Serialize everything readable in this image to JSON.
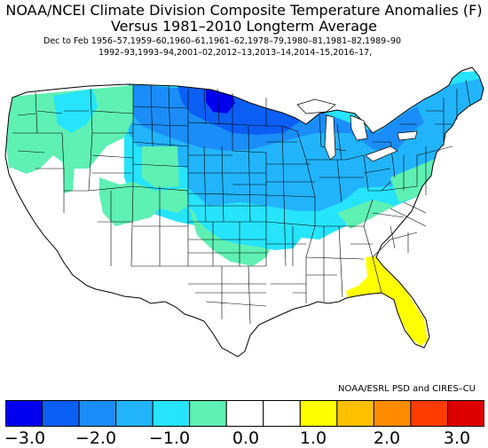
{
  "title": {
    "line1": "NOAA/NCEI Climate Division Composite Temperature Anomalies (F)",
    "line2": "Versus 1981–2010 Longterm Average"
  },
  "subtitle": {
    "line1": "Dec to Feb  1956–57,1959–60,1960–61,1961–62,1978–79,1980–81,1981–82,1989–90",
    "line2": "1992–93,1993–94,2001–02,2012–13,2013–14,2014–15,2016–17,"
  },
  "credit": "NOAA/ESRL PSD and CIRES–CU",
  "legend": {
    "colors": [
      "#0000ee",
      "#0c5ff4",
      "#1b8df8",
      "#22b4fb",
      "#26e4fb",
      "#5ff0b4",
      "#ffffff",
      "#ffffff",
      "#ffff00",
      "#ffc000",
      "#ff8c00",
      "#ff3c00",
      "#dd0000"
    ],
    "ticks": [
      "−3.0",
      "−2.0",
      "−1.0",
      "0.0",
      "1.0",
      "2.0",
      "3.0"
    ]
  },
  "map": {
    "land_color": "#ffffff",
    "border_color": "#000000",
    "anomaly_colors": {
      "minus_2_5": "#0000ee",
      "minus_2_0": "#0c5ff4",
      "minus_1_5": "#1b8df8",
      "minus_1_0": "#22b4fb",
      "minus_0_5": "#26e4fb",
      "minus_0_25": "#5ff0b4",
      "plus_0_5": "#ffff00"
    }
  }
}
